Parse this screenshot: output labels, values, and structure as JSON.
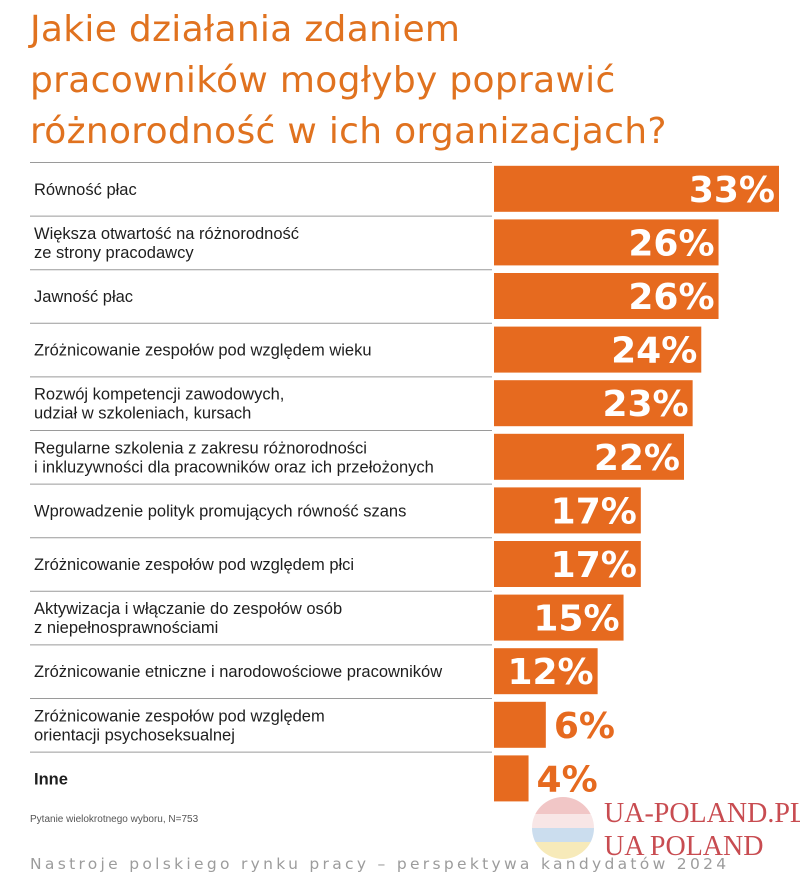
{
  "title": {
    "lines": [
      "Jakie działania zdaniem",
      "pracowników mogłyby poprawić",
      "różnorodność w ich organizacjach?"
    ]
  },
  "colors": {
    "title": "#e0721f",
    "bar": "#e66a1f",
    "text": "#1e1e1e",
    "footer": "#9c9c9c"
  },
  "chart_data": {
    "type": "bar",
    "orientation": "horizontal",
    "title": "Jakie działania zdaniem pracowników mogłyby poprawić różnorodność w ich organizacjach?",
    "xlim": [
      0,
      33
    ],
    "grid": false,
    "categories": [
      [
        "Równość płac"
      ],
      [
        "Większa otwartość na różnorodność",
        "ze strony pracodawcy"
      ],
      [
        "Jawność płac"
      ],
      [
        "Zróżnicowanie zespołów pod względem wieku"
      ],
      [
        "Rozwój kompetencji zawodowych,",
        "udział w szkoleniach, kursach"
      ],
      [
        "Regularne szkolenia z zakresu różnorodności",
        "i inkluzywności dla pracowników oraz ich przełożonych"
      ],
      [
        "Wprowadzenie polityk promujących równość szans"
      ],
      [
        "Zróżnicowanie zespołów pod względem płci"
      ],
      [
        "Aktywizacja i włączanie do zespołów osób",
        "z niepełnosprawnościami"
      ],
      [
        "Zróżnicowanie etniczne i narodowościowe pracowników"
      ],
      [
        "Zróżnicowanie zespołów pod względem",
        "orientacji psychoseksualnej"
      ],
      [
        "Inne"
      ]
    ],
    "values": [
      33,
      26,
      26,
      24,
      23,
      22,
      17,
      17,
      15,
      12,
      6,
      4
    ],
    "value_labels": [
      "33%",
      "26%",
      "26%",
      "24%",
      "23%",
      "22%",
      "17%",
      "17%",
      "15%",
      "12%",
      "6%",
      "4%"
    ]
  },
  "note": "Pytanie wielokrotnego wyboru, N=753",
  "footer": "Nastroje polskiego rynku pracy – perspektywa kandydatów 2024",
  "watermark": {
    "line1": "UA-POLAND.PL",
    "line2": "UA POLAND"
  }
}
